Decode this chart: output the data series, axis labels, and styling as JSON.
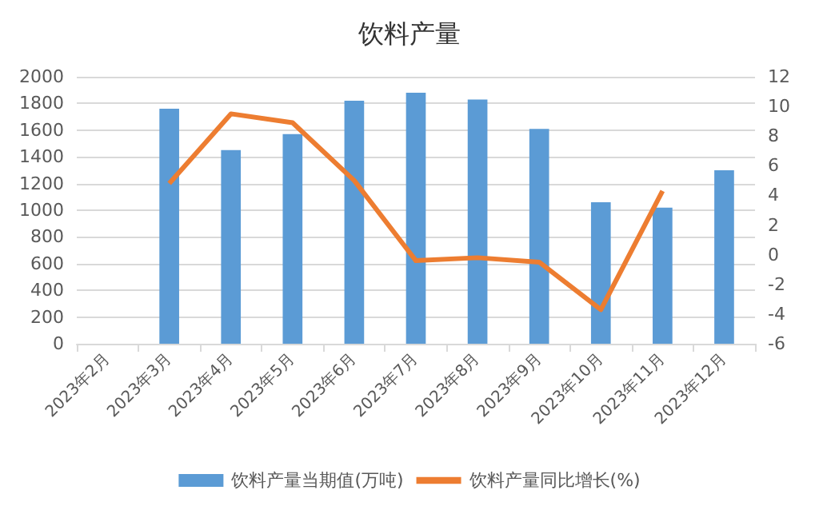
{
  "chart_data": {
    "type": "bar",
    "title": "饮料产量",
    "categories": [
      "2023年2月",
      "2023年3月",
      "2023年4月",
      "2023年5月",
      "2023年6月",
      "2023年7月",
      "2023年8月",
      "2023年9月",
      "2023年10月",
      "2023年11月",
      "2023年12月"
    ],
    "series": [
      {
        "name": "饮料产量当期值(万吨)",
        "color": "#5b9bd5",
        "values": [
          null,
          1760,
          1450,
          1570,
          1820,
          1880,
          1830,
          1610,
          1060,
          1020,
          1300
        ]
      },
      {
        "name": "饮料产量同比增长(%)",
        "type": "line",
        "axis": "y2",
        "color": "#ed7d31",
        "values": [
          null,
          4.8,
          9.5,
          8.9,
          5.0,
          -0.4,
          -0.2,
          -0.5,
          -3.7,
          4.3,
          null
        ]
      }
    ],
    "ylim": [
      0,
      2000
    ],
    "yticks": [
      0,
      200,
      400,
      600,
      800,
      1000,
      1200,
      1400,
      1600,
      1800,
      2000
    ],
    "y2lim": [
      -6,
      12
    ],
    "y2ticks": [
      -6,
      -4,
      -2,
      0,
      2,
      4,
      6,
      8,
      10,
      12
    ],
    "grid": "y",
    "legend": "bottom",
    "marker": "none"
  }
}
